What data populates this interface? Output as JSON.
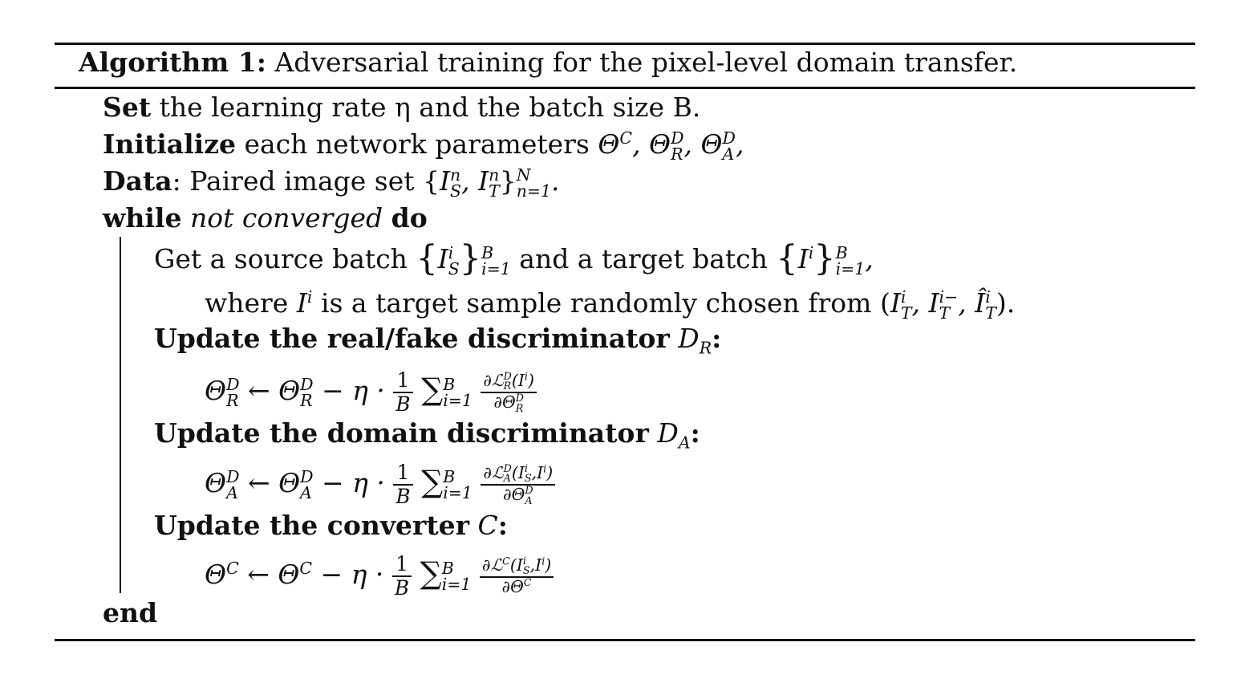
{
  "algorithm": {
    "label": "Algorithm 1:",
    "caption": "Adversarial training for the pixel-level domain transfer."
  },
  "lines": {
    "set": {
      "keyword": "Set",
      "text": "the learning rate η and the batch size B."
    },
    "initialize": {
      "keyword": "Initialize",
      "text": "each network parameters"
    },
    "data": {
      "keyword": "Data",
      "text": ": Paired image set"
    },
    "while": {
      "keyword": "while",
      "condition": "not converged",
      "keyword2": "do"
    },
    "get_batch": {
      "text1": "Get a source batch",
      "text2": "and a target batch"
    },
    "where": {
      "text1": "where",
      "text2": "is a target sample randomly chosen from"
    },
    "update_dr": {
      "text": "Update the real/fake discriminator"
    },
    "update_da": {
      "text": "Update the domain discriminator"
    },
    "update_c": {
      "text": "Update the converter"
    },
    "end": {
      "keyword": "end"
    }
  }
}
